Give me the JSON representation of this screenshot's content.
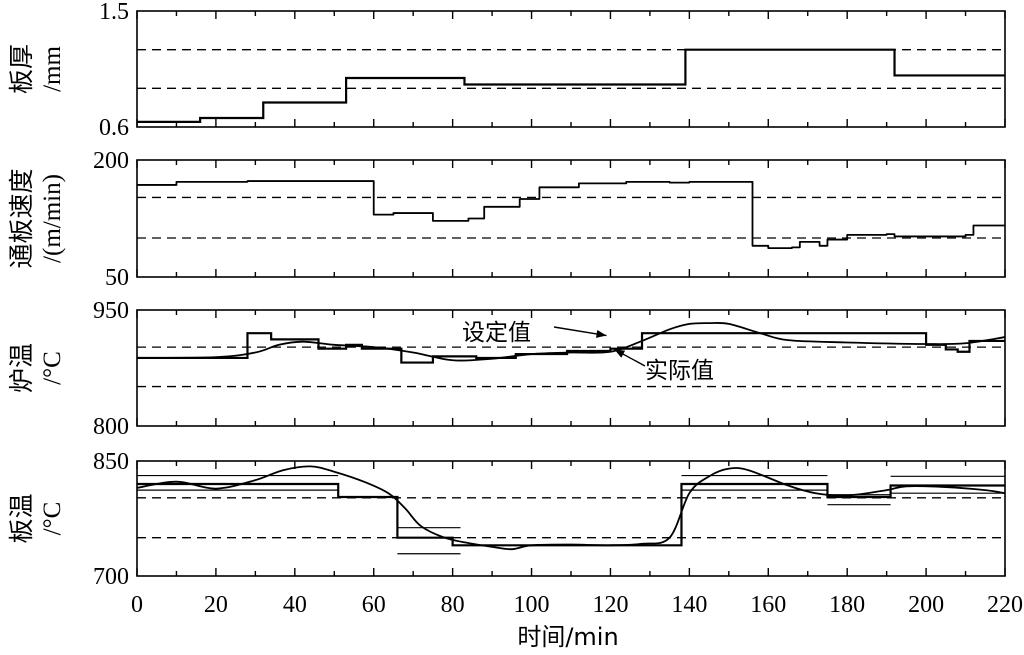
{
  "chart_data": {
    "type": "line",
    "x_range": [
      0,
      220
    ],
    "x_ticks": [
      "0",
      "20",
      "40",
      "60",
      "80",
      "100",
      "120",
      "140",
      "160",
      "180",
      "200",
      "220"
    ],
    "xlabel": "时间/min",
    "panels": [
      {
        "id": "thickness",
        "ylabel_lines": [
          "板厚",
          "/mm"
        ],
        "ylim": [
          0.6,
          1.5
        ],
        "y_ticks": [
          {
            "value": 0.6,
            "label": "0.6"
          },
          {
            "value": 1.5,
            "label": "1.5"
          }
        ],
        "ref_lines": [
          0.9,
          1.2
        ],
        "series": [
          {
            "role": "setpoint",
            "style": "step",
            "x": [
              0,
              16,
              32,
              53,
              83,
              139,
              192,
              220
            ],
            "y": [
              0.64,
              0.67,
              0.79,
              0.98,
              0.93,
              1.2,
              1.0,
              1.0
            ]
          }
        ]
      },
      {
        "id": "speed",
        "ylabel_lines": [
          "通板速度",
          "/(m/min)"
        ],
        "ylim": [
          50,
          200
        ],
        "y_ticks": [
          {
            "value": 50,
            "label": "50"
          },
          {
            "value": 200,
            "label": "200"
          }
        ],
        "ref_lines": [
          100,
          152
        ],
        "series": [
          {
            "role": "actual",
            "style": "step",
            "x": [
              0,
              10,
              28,
              32,
              60,
              65,
              70,
              75,
              84,
              88,
              90,
              97,
              102,
              112,
              124,
              131,
              135,
              140,
              156,
              160,
              166,
              168,
              173,
              175,
              180,
              190,
              192,
              210,
              212,
              220
            ],
            "y": [
              168,
              172,
              173,
              173,
              130,
              132,
              132,
              122,
              125,
              140,
              140,
              150,
              165,
              170,
              172,
              172,
              171,
              172,
              90,
              87,
              88,
              95,
              90,
              98,
              104,
              105,
              102,
              104,
              116,
              118
            ]
          }
        ]
      },
      {
        "id": "furnace-temp",
        "ylabel_lines": [
          "炉温",
          "/°C"
        ],
        "ylim": [
          800,
          950
        ],
        "y_ticks": [
          {
            "value": 800,
            "label": "800"
          },
          {
            "value": 950,
            "label": "950"
          }
        ],
        "ref_lines": [
          851,
          902
        ],
        "series": [
          {
            "role": "setpoint",
            "style": "step",
            "x": [
              0,
              28,
              34,
              46,
              53,
              57,
              67,
              75,
              86,
              96,
              109,
              120,
              128,
              200,
              205,
              208,
              211,
              220
            ],
            "y": [
              888,
              920,
              912,
              900,
              905,
              900,
              882,
              890,
              888,
              893,
              897,
              900,
              920,
              905,
              899,
              896,
              910,
              903
            ]
          },
          {
            "role": "actual",
            "style": "smooth",
            "x": [
              0,
              20,
              30,
              36,
              42,
              50,
              60,
              70,
              80,
              90,
              100,
              110,
              120,
              128,
              135,
              140,
              145,
              150,
              158,
              165,
              180,
              200,
              210,
              220
            ],
            "y": [
              888,
              889,
              895,
              905,
              909,
              905,
              902,
              895,
              885,
              887,
              893,
              895,
              896,
              910,
              925,
              932,
              933,
              932,
              920,
              911,
              908,
              906,
              907,
              915
            ]
          }
        ],
        "annotations": [
          {
            "text": "设定值",
            "target_x": 119,
            "target_y": 917
          },
          {
            "text": "实际值",
            "target_x": 121,
            "target_y": 899
          }
        ]
      },
      {
        "id": "strip-temp",
        "ylabel_lines": [
          "板温",
          "/°C"
        ],
        "ylim": [
          700,
          850
        ],
        "y_ticks": [
          {
            "value": 700,
            "label": "700"
          },
          {
            "value": 850,
            "label": "850"
          }
        ],
        "ref_lines": [
          750,
          802
        ],
        "series": [
          {
            "role": "setpoint",
            "style": "step",
            "x": [
              0,
              51,
              66,
              80,
              138,
              175,
              191,
              220
            ],
            "y": [
              820,
              803,
              750,
              740,
              820,
              803,
              818,
              803
            ]
          },
          {
            "role": "actual",
            "style": "smooth",
            "x": [
              0,
              10,
              20,
              30,
              37,
              44,
              50,
              58,
              64,
              68,
              72,
              78,
              85,
              90,
              95,
              100,
              110,
              120,
              128,
              135,
              140,
              145,
              150,
              155,
              165,
              172,
              180,
              190,
              195,
              205,
              215,
              220
            ],
            "y": [
              815,
              823,
              814,
              825,
              838,
              843,
              836,
              822,
              807,
              788,
              765,
              750,
              742,
              738,
              735,
              740,
              741,
              740,
              742,
              750,
              808,
              830,
              840,
              838,
              818,
              808,
              805,
              812,
              817,
              816,
              812,
              808
            ]
          }
        ],
        "tolerance_bands": [
          {
            "x": [
              0,
              51
            ],
            "y": [
              831,
              812
            ]
          },
          {
            "x": [
              66,
              82
            ],
            "y": [
              763,
              729
            ]
          },
          {
            "x": [
              138,
              175
            ],
            "y": [
              831,
              812
            ]
          },
          {
            "x": [
              175,
              191
            ],
            "y": [
              806,
              793
            ]
          },
          {
            "x": [
              191,
              220
            ],
            "y": [
              830,
              808
            ]
          }
        ]
      }
    ]
  }
}
